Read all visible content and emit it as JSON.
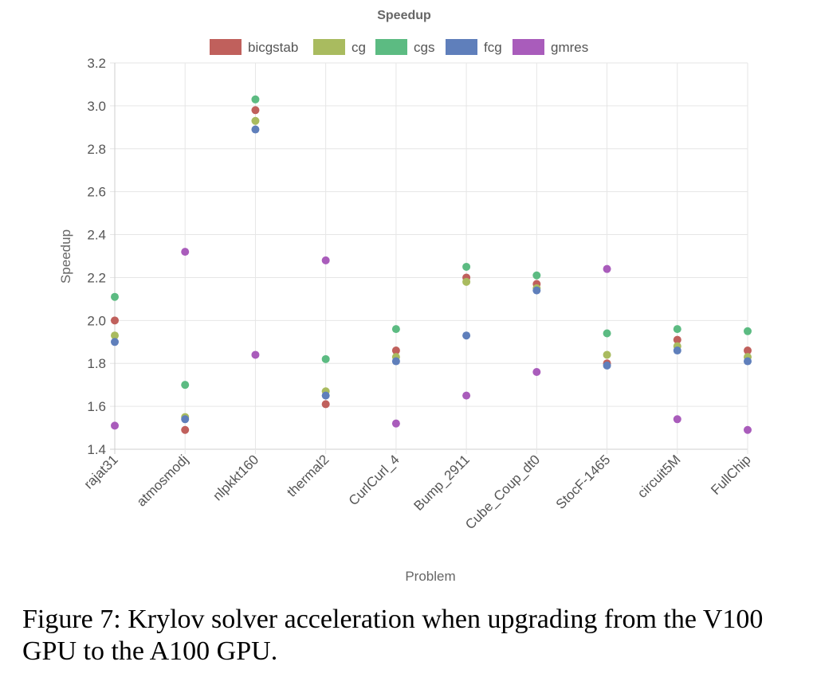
{
  "chart_data": {
    "type": "scatter",
    "title": "Speedup",
    "xlabel": "Problem",
    "ylabel": "Speedup",
    "ylim": [
      1.4,
      3.2
    ],
    "yticks": [
      "1.4",
      "1.6",
      "1.8",
      "2.0",
      "2.2",
      "2.4",
      "2.6",
      "2.8",
      "3.0",
      "3.2"
    ],
    "grid": true,
    "legend_position": "top-center",
    "categories": [
      "rajat31",
      "atmosmodj",
      "nlpkkt160",
      "thermal2",
      "CurlCurl_4",
      "Bump_2911",
      "Cube_Coup_dt0",
      "StocF-1465",
      "circuit5M",
      "FullChip"
    ],
    "series": [
      {
        "name": "bicgstab",
        "color": "#c0605c",
        "values": [
          2.0,
          1.49,
          2.98,
          1.61,
          1.86,
          2.2,
          2.17,
          1.8,
          1.91,
          1.86
        ]
      },
      {
        "name": "cg",
        "color": "#a9bb5f",
        "values": [
          1.93,
          1.55,
          2.93,
          1.67,
          1.83,
          2.18,
          2.15,
          1.84,
          1.88,
          1.83
        ]
      },
      {
        "name": "cgs",
        "color": "#5cbb82",
        "values": [
          2.11,
          1.7,
          3.03,
          1.82,
          1.96,
          2.25,
          2.21,
          1.94,
          1.96,
          1.95
        ]
      },
      {
        "name": "fcg",
        "color": "#5f7fbb",
        "values": [
          1.9,
          1.54,
          2.89,
          1.65,
          1.81,
          1.93,
          2.14,
          1.79,
          1.86,
          1.81
        ]
      },
      {
        "name": "gmres",
        "color": "#a95cbb",
        "values": [
          1.51,
          2.32,
          1.84,
          2.28,
          1.52,
          1.65,
          1.76,
          2.24,
          1.54,
          1.49
        ]
      }
    ]
  },
  "caption": "Figure 7: Krylov solver acceleration when upgrading from the V100 GPU to the A100 GPU."
}
